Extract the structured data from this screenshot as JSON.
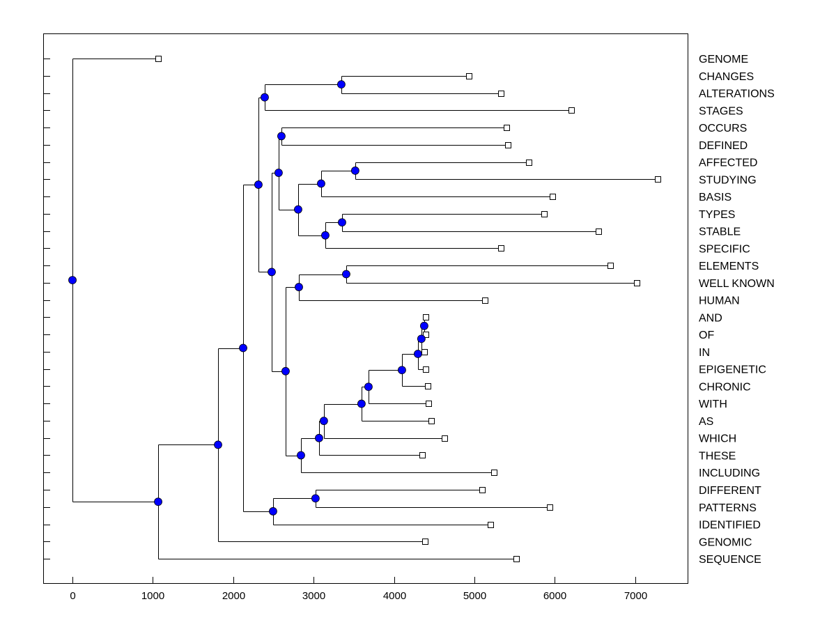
{
  "chart_data": {
    "type": "dendrogram",
    "title": "",
    "xlabel": "",
    "ylabel": "",
    "xlim": [
      -364,
      7660
    ],
    "x_ticks": [
      0,
      1000,
      2000,
      3000,
      4000,
      5000,
      6000,
      7000
    ],
    "x_tick_labels": [
      "0",
      "1000",
      "2000",
      "3000",
      "4000",
      "5000",
      "6000",
      "7000"
    ],
    "grid": false,
    "colors": {
      "node": "#0000ff",
      "line": "#000000",
      "leaf_fill": "#ffffff"
    },
    "leaves": [
      {
        "label": "GENOME",
        "x": 1066
      },
      {
        "label": "CHANGES",
        "x": 4929
      },
      {
        "label": "ALTERATIONS",
        "x": 5328
      },
      {
        "label": "STAGES",
        "x": 6203
      },
      {
        "label": "OCCURS",
        "x": 5397
      },
      {
        "label": "DEFINED",
        "x": 5414
      },
      {
        "label": "AFFECTED",
        "x": 5674
      },
      {
        "label": "STUDYING",
        "x": 7277
      },
      {
        "label": "BASIS",
        "x": 5969
      },
      {
        "label": "TYPES",
        "x": 5865
      },
      {
        "label": "STABLE",
        "x": 6541
      },
      {
        "label": "SPECIFIC",
        "x": 5328
      },
      {
        "label": "ELEMENTS",
        "x": 6688
      },
      {
        "label": "WELL KNOWN",
        "x": 7017
      },
      {
        "label": "HUMAN",
        "x": 5129
      },
      {
        "label": "AND",
        "x": 4392
      },
      {
        "label": "OF",
        "x": 4392
      },
      {
        "label": "IN",
        "x": 4375
      },
      {
        "label": "EPIGENETIC",
        "x": 4392
      },
      {
        "label": "CHRONIC",
        "x": 4418
      },
      {
        "label": "WITH",
        "x": 4427
      },
      {
        "label": "AS",
        "x": 4462
      },
      {
        "label": "WHICH",
        "x": 4626
      },
      {
        "label": "THESE",
        "x": 4349
      },
      {
        "label": "INCLUDING",
        "x": 5241
      },
      {
        "label": "DIFFERENT",
        "x": 5094
      },
      {
        "label": "PATTERNS",
        "x": 5934
      },
      {
        "label": "IDENTIFIED",
        "x": 5198
      },
      {
        "label": "GENOMIC",
        "x": 4384
      },
      {
        "label": "SEQUENCE",
        "x": 5518
      }
    ],
    "nodes": {
      "n0": {
        "x": 0,
        "children": [
          "L0",
          "n1"
        ]
      },
      "n1": {
        "x": 1066,
        "children": [
          "n2",
          "L29"
        ]
      },
      "n2": {
        "x": 1811,
        "children": [
          "n3",
          "L28"
        ]
      },
      "n3": {
        "x": 2123,
        "children": [
          "n4",
          "nI"
        ]
      },
      "n4": {
        "x": 2313,
        "children": [
          "n5",
          "n6"
        ]
      },
      "n5": {
        "x": 2391,
        "children": [
          "n7",
          "L3"
        ]
      },
      "n7": {
        "x": 3344,
        "children": [
          "L1",
          "L2"
        ]
      },
      "n6": {
        "x": 2478,
        "children": [
          "n8",
          "n9"
        ]
      },
      "n8": {
        "x": 2564,
        "children": [
          "n10",
          "n11"
        ]
      },
      "n10": {
        "x": 2599,
        "children": [
          "L4",
          "L5"
        ]
      },
      "n11": {
        "x": 2807,
        "children": [
          "n12",
          "n13"
        ]
      },
      "n12": {
        "x": 3093,
        "children": [
          "n14",
          "L8"
        ]
      },
      "n14": {
        "x": 3517,
        "children": [
          "L6",
          "L7"
        ]
      },
      "n13": {
        "x": 3145,
        "children": [
          "n15",
          "L11"
        ]
      },
      "n15": {
        "x": 3353,
        "children": [
          "L9",
          "L10"
        ]
      },
      "n9": {
        "x": 2651,
        "children": [
          "n16",
          "n17"
        ]
      },
      "n16": {
        "x": 2816,
        "children": [
          "n18",
          "L14"
        ]
      },
      "n18": {
        "x": 3405,
        "children": [
          "L12",
          "L13"
        ]
      },
      "n17": {
        "x": 2842,
        "children": [
          "n19",
          "L24"
        ]
      },
      "n19": {
        "x": 3067,
        "children": [
          "n20",
          "L23"
        ]
      },
      "n20": {
        "x": 3127,
        "children": [
          "n21",
          "L22"
        ]
      },
      "n21": {
        "x": 3595,
        "children": [
          "n22",
          "L21"
        ]
      },
      "n22": {
        "x": 3682,
        "children": [
          "n23",
          "L20"
        ]
      },
      "n23": {
        "x": 4098,
        "children": [
          "n24",
          "L19"
        ]
      },
      "n24": {
        "x": 4297,
        "children": [
          "n25",
          "L18"
        ]
      },
      "n25": {
        "x": 4340,
        "children": [
          "n26",
          "L17"
        ]
      },
      "n26": {
        "x": 4375,
        "children": [
          "L15",
          "L16"
        ]
      },
      "nI": {
        "x": 2495,
        "children": [
          "n27",
          "L27"
        ]
      },
      "n27": {
        "x": 3023,
        "children": [
          "L25",
          "L26"
        ]
      }
    },
    "root": "n0"
  }
}
